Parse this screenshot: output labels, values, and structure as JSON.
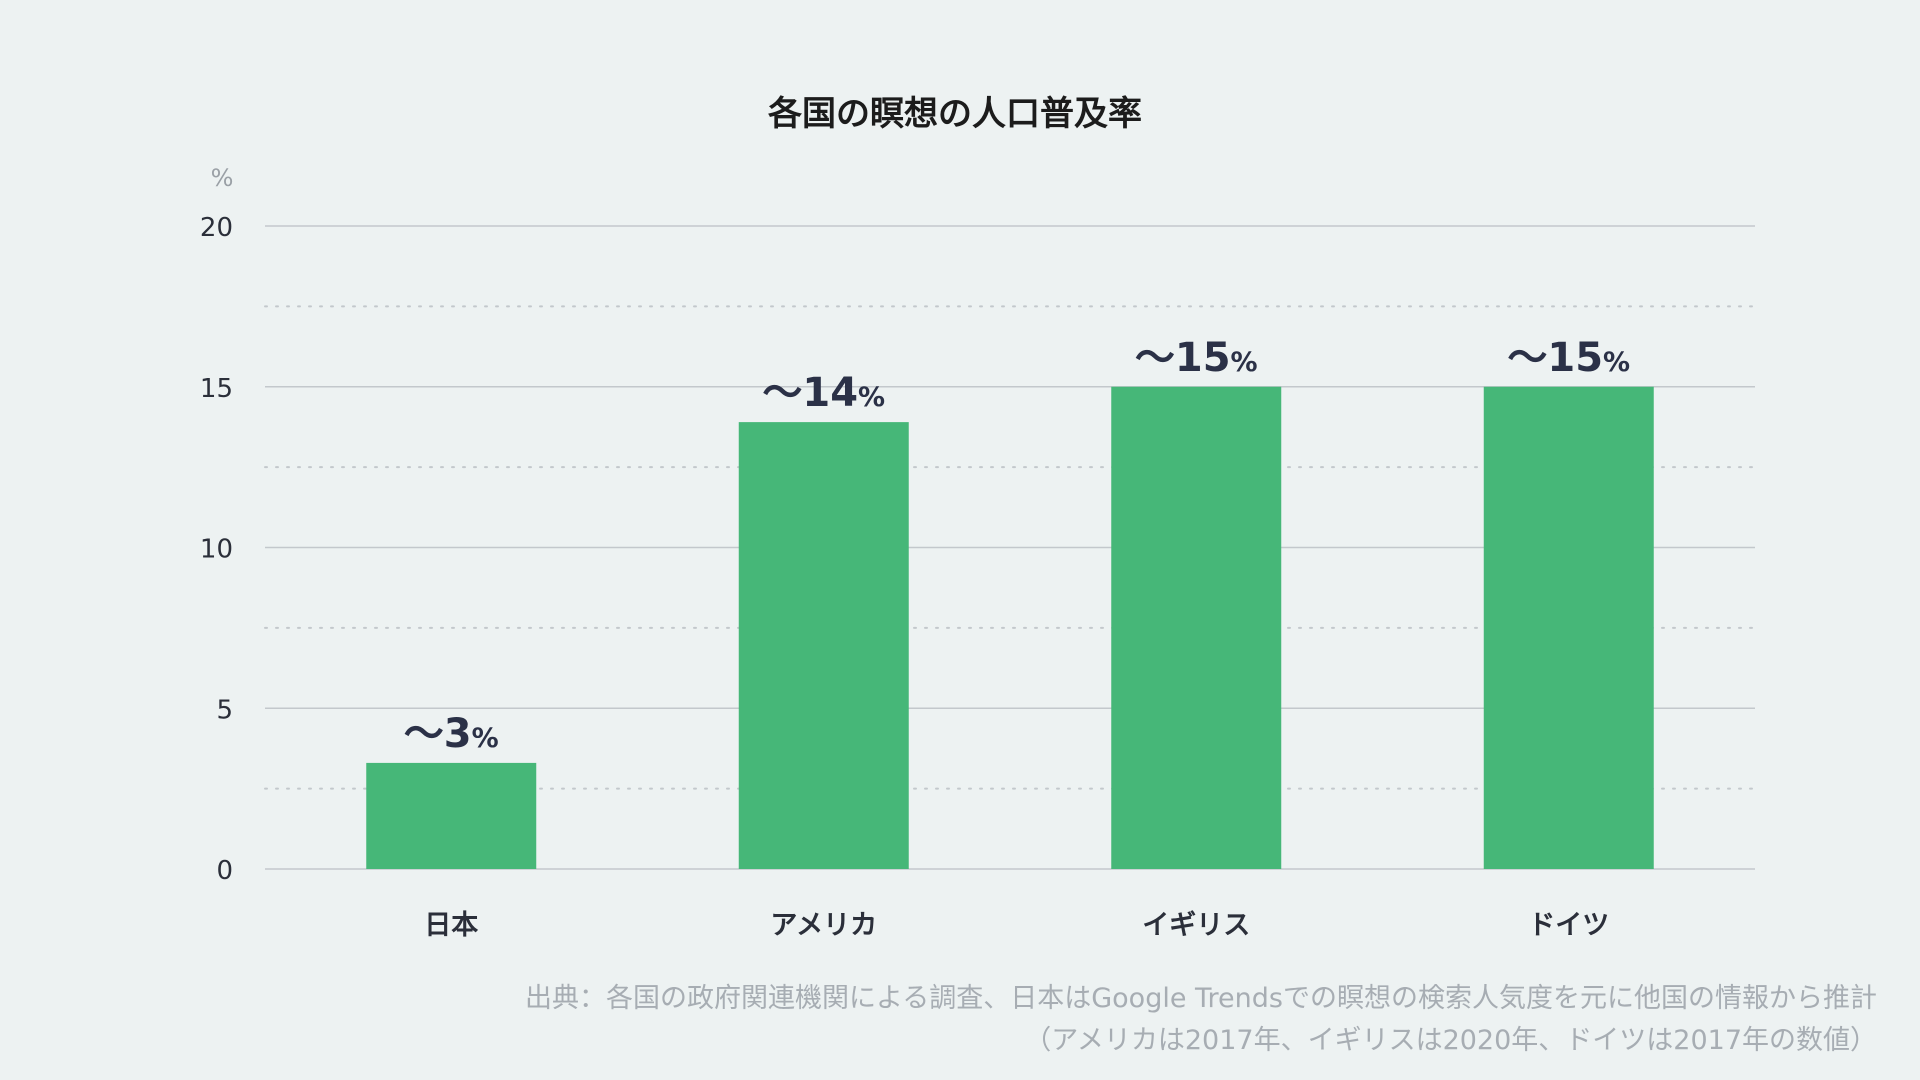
{
  "chart_data": {
    "type": "bar",
    "title": "各国の瞑想の人口普及率",
    "unit_label": "%",
    "categories": [
      "日本",
      "アメリカ",
      "イギリス",
      "ドイツ"
    ],
    "values": [
      3.3,
      13.9,
      15,
      15
    ],
    "data_labels": [
      {
        "prefix": "〜",
        "number": "3",
        "unit": "%"
      },
      {
        "prefix": "〜",
        "number": "14",
        "unit": "%"
      },
      {
        "prefix": "〜",
        "number": "15",
        "unit": "%"
      },
      {
        "prefix": "〜",
        "number": "15",
        "unit": "%"
      }
    ],
    "ylim": [
      0,
      20
    ],
    "yticks": [
      0,
      5,
      10,
      15,
      20
    ],
    "minor_gridlines": true,
    "bar_color": "#46b778",
    "gridline_color": "#c3c8cc"
  },
  "source": {
    "line1": "出典：各国の政府関連機関による調査、日本はGoogle Trendsでの瞑想の検索人気度を元に他国の情報から推計",
    "line2": "（アメリカは2017年、イギリスは2020年、ドイツは2017年の数値）"
  }
}
